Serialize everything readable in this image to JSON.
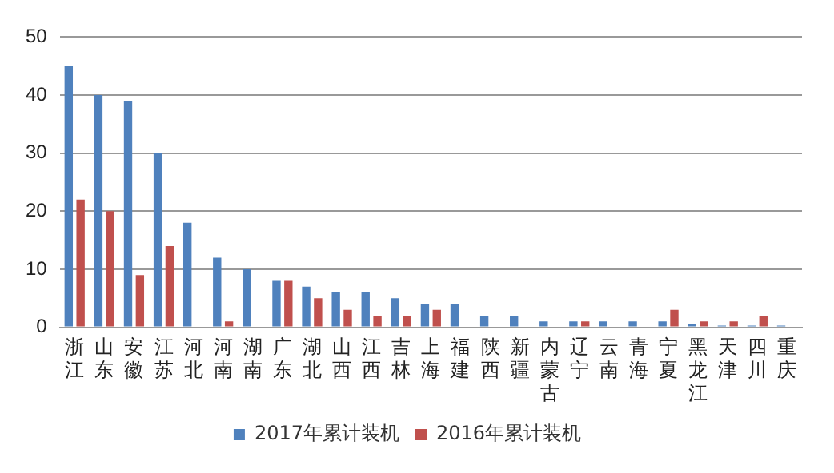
{
  "chart_data": {
    "type": "bar",
    "categories": [
      "浙江",
      "山东",
      "安徽",
      "江苏",
      "河北",
      "河南",
      "湖南",
      "广东",
      "湖北",
      "山西",
      "江西",
      "吉林",
      "上海",
      "福建",
      "陕西",
      "新疆",
      "内蒙古",
      "辽宁",
      "云南",
      "青海",
      "宁夏",
      "黑龙江",
      "天津",
      "四川",
      "重庆"
    ],
    "series": [
      {
        "name": "2017年累计装机",
        "color": "#4f81bd",
        "values": [
          45,
          40,
          39,
          30,
          18,
          12,
          10,
          8,
          7,
          6,
          6,
          5,
          4,
          4,
          2,
          2,
          1,
          1,
          1,
          1,
          1,
          0.5,
          0.3,
          0.3,
          0.3
        ]
      },
      {
        "name": "2016年累计装机",
        "color": "#c0504d",
        "values": [
          22,
          20,
          9,
          14,
          0,
          1,
          0,
          8,
          5,
          3,
          2,
          2,
          3,
          0,
          0,
          0,
          0,
          1,
          0,
          0,
          3,
          1,
          1,
          2,
          0
        ]
      }
    ],
    "ylim": [
      0,
      50
    ],
    "yticks": [
      0,
      10,
      20,
      30,
      40,
      50
    ],
    "grid": "y",
    "legend": "bottom"
  }
}
